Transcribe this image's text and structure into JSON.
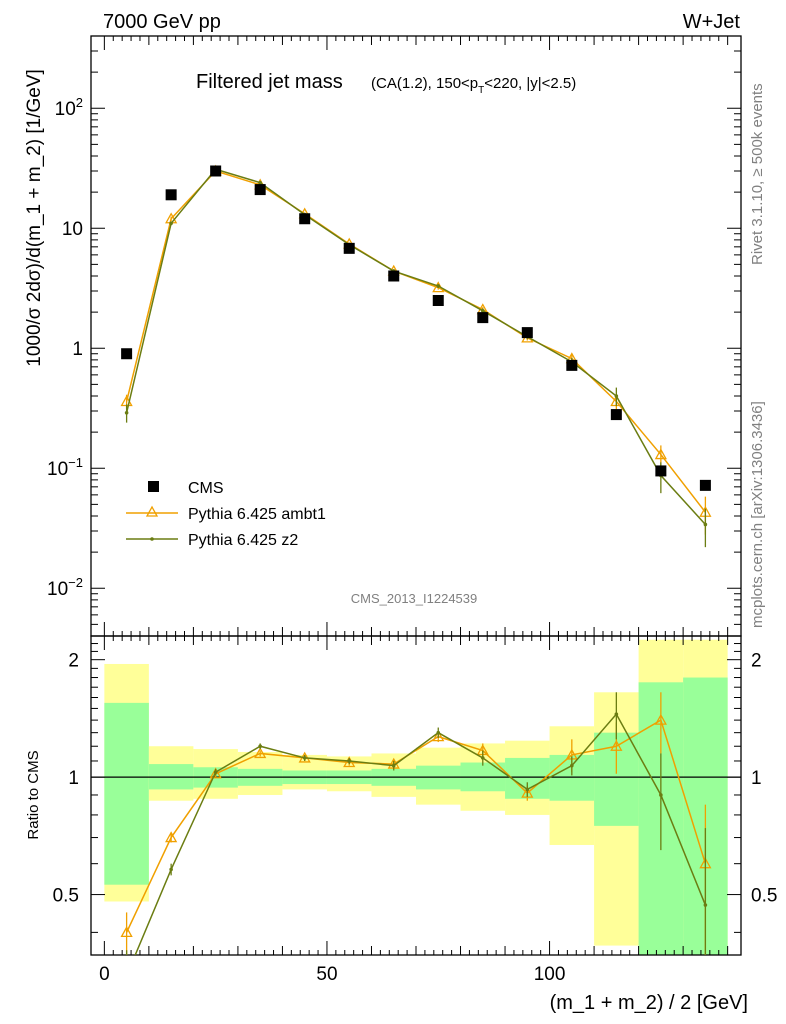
{
  "header": {
    "energy_label": "7000 GeV pp",
    "process_label": "W+Jet"
  },
  "side": {
    "rivet_label": "Rivet 3.1.10, ≥ 500k events",
    "source_label": "mcplots.cern.ch [arXiv:1306.3436]"
  },
  "analysis_label": "CMS_2013_I1224539",
  "colors": {
    "cms": "#000000",
    "ambt1": "#f0a000",
    "z2": "#6b7d12",
    "band_yellow": "#ffff99",
    "band_green": "#99ff99"
  },
  "chart_data": [
    {
      "type": "scatter",
      "title": "Filtered jet mass",
      "title_sub": "(CA(1.2), 150<p_T<220, |y|<2.5)",
      "ylabel": "1000/σ 2dσ)/d(m_1 + m_2) [1/GeV]",
      "yscale": "log",
      "ylim": [
        0.004,
        400
      ],
      "xlim": [
        -3,
        143
      ],
      "ytick_labels": [
        "10^-2",
        "10^-1",
        "1",
        "10",
        "10^2"
      ],
      "x": [
        5,
        15,
        25,
        35,
        45,
        55,
        65,
        75,
        85,
        95,
        105,
        115,
        125,
        135
      ],
      "series": [
        {
          "name": "CMS",
          "values": [
            0.9,
            19,
            30,
            21,
            12,
            6.8,
            4.0,
            2.5,
            1.8,
            1.35,
            0.72,
            0.28,
            0.095,
            0.072
          ]
        },
        {
          "name": "Pythia 6.425 ambt1",
          "values": [
            0.36,
            12,
            30,
            23,
            13.2,
            7.4,
            4.4,
            3.2,
            2.1,
            1.22,
            0.82,
            0.36,
            0.13,
            0.043
          ],
          "errors": [
            0.05,
            0.5,
            0.6,
            0.5,
            0.3,
            0.2,
            0.15,
            0.12,
            0.1,
            0.06,
            0.06,
            0.05,
            0.025,
            0.015
          ]
        },
        {
          "name": "Pythia 6.425 z2",
          "values": [
            0.29,
            11,
            31,
            24,
            13.0,
            7.3,
            4.4,
            3.3,
            2.05,
            1.25,
            0.77,
            0.4,
            0.087,
            0.034
          ],
          "errors": [
            0.05,
            0.4,
            0.6,
            0.5,
            0.3,
            0.2,
            0.15,
            0.12,
            0.1,
            0.06,
            0.06,
            0.07,
            0.025,
            0.012
          ]
        }
      ],
      "legend_position": "lower-left"
    },
    {
      "type": "line",
      "ylabel": "Ratio to CMS",
      "xlabel": "(m_1 + m_2) / 2 [GeV]",
      "ylim": [
        0.35,
        2.3
      ],
      "xlim": [
        -3,
        143
      ],
      "ytick_labels": [
        "0.5",
        "1",
        "2"
      ],
      "xtick_labels": [
        "0",
        "50",
        "100"
      ],
      "bins": [
        [
          0,
          10
        ],
        [
          10,
          20
        ],
        [
          20,
          30
        ],
        [
          30,
          40
        ],
        [
          40,
          50
        ],
        [
          50,
          60
        ],
        [
          60,
          70
        ],
        [
          70,
          80
        ],
        [
          80,
          90
        ],
        [
          90,
          100
        ],
        [
          100,
          110
        ],
        [
          110,
          120
        ],
        [
          120,
          130
        ],
        [
          130,
          140
        ]
      ],
      "band_yellow": [
        [
          0.48,
          1.95
        ],
        [
          0.87,
          1.2
        ],
        [
          0.88,
          1.18
        ],
        [
          0.9,
          1.16
        ],
        [
          0.93,
          1.14
        ],
        [
          0.92,
          1.13
        ],
        [
          0.89,
          1.15
        ],
        [
          0.85,
          1.19
        ],
        [
          0.82,
          1.22
        ],
        [
          0.8,
          1.24
        ],
        [
          0.67,
          1.35
        ],
        [
          0.37,
          1.65
        ],
        [
          0.3,
          2.25
        ],
        [
          0.3,
          2.25
        ]
      ],
      "band_green": [
        [
          0.53,
          1.55
        ],
        [
          0.93,
          1.08
        ],
        [
          0.94,
          1.06
        ],
        [
          0.95,
          1.05
        ],
        [
          0.96,
          1.04
        ],
        [
          0.96,
          1.04
        ],
        [
          0.95,
          1.05
        ],
        [
          0.93,
          1.07
        ],
        [
          0.92,
          1.09
        ],
        [
          0.88,
          1.12
        ],
        [
          0.87,
          1.14
        ],
        [
          0.75,
          1.3
        ],
        [
          0.2,
          1.75
        ],
        [
          0.2,
          1.8
        ]
      ],
      "series": [
        {
          "name": "Pythia 6.425 ambt1",
          "values": [
            0.4,
            0.7,
            1.02,
            1.15,
            1.12,
            1.09,
            1.08,
            1.27,
            1.17,
            0.91,
            1.14,
            1.2,
            1.4,
            0.6
          ],
          "errors": [
            0.05,
            0.02,
            0.02,
            0.02,
            0.02,
            0.02,
            0.03,
            0.04,
            0.05,
            0.04,
            0.11,
            0.18,
            0.25,
            0.25
          ]
        },
        {
          "name": "Pythia 6.425 z2",
          "values": [
            0.31,
            0.58,
            1.03,
            1.2,
            1.12,
            1.1,
            1.07,
            1.3,
            1.12,
            0.93,
            1.07,
            1.45,
            0.9,
            0.47
          ],
          "errors": [
            0.05,
            0.02,
            0.02,
            0.02,
            0.02,
            0.02,
            0.03,
            0.04,
            0.05,
            0.04,
            0.06,
            0.2,
            0.25,
            0.27
          ]
        }
      ]
    }
  ]
}
